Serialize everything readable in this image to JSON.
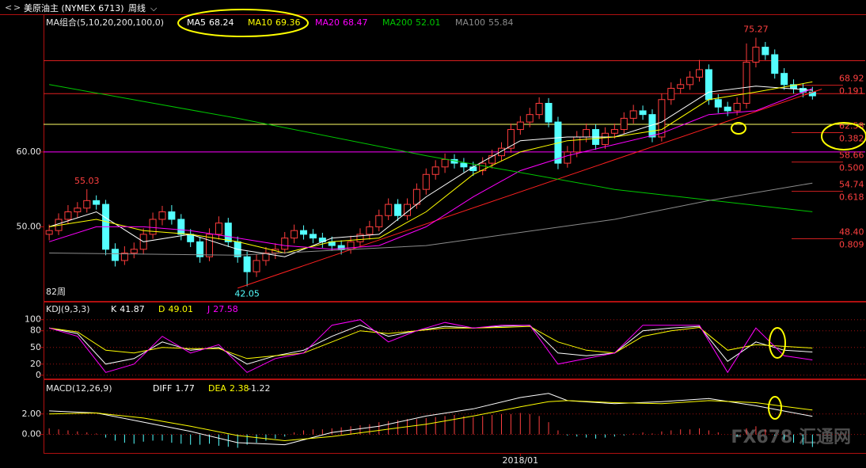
{
  "header": {
    "title": "美原油主 (NYMEX 6713)",
    "period": "周线"
  },
  "watermark": "FX678 汇通网",
  "chart_data": [
    {
      "type": "candlestick",
      "legend_title": "MA组合(5,10,20,200,100,0)",
      "period_label": "82周",
      "up_color": "#ff3c3c",
      "down_color": "#54ffff",
      "xlim": [
        -0.6,
        86.6
      ],
      "ylim": [
        40.1,
        78.4
      ],
      "yticks": [
        {
          "value": 60,
          "label": "60.00"
        },
        {
          "value": 50,
          "label": "50.00"
        }
      ],
      "xticks": [
        {
          "value": 50,
          "label": "2018/01"
        }
      ],
      "grid": false,
      "ohlc": [
        [
          49,
          50.3,
          48.2,
          49.5
        ],
        [
          49.5,
          51.8,
          48.9,
          51
        ],
        [
          51,
          52.9,
          50.4,
          52
        ],
        [
          52,
          53.3,
          51.2,
          52.5
        ],
        [
          52.5,
          55.03,
          51.9,
          53.5
        ],
        [
          53.5,
          54.2,
          52.3,
          53
        ],
        [
          53,
          53.6,
          46.2,
          47
        ],
        [
          47,
          47.8,
          44.7,
          45.5
        ],
        [
          45.5,
          47.4,
          44.9,
          46.5
        ],
        [
          46.5,
          47.9,
          45.8,
          47
        ],
        [
          47,
          49.8,
          46.3,
          49
        ],
        [
          49,
          51.9,
          48.4,
          51
        ],
        [
          51,
          52.8,
          50.2,
          52
        ],
        [
          52,
          52.9,
          50.3,
          51
        ],
        [
          51,
          51.7,
          48.2,
          49
        ],
        [
          49,
          49.7,
          47.3,
          48
        ],
        [
          48,
          48.6,
          45.2,
          46
        ],
        [
          46,
          49.8,
          45.4,
          49
        ],
        [
          49,
          51.4,
          48.3,
          50.5
        ],
        [
          50.5,
          51.2,
          47.3,
          48
        ],
        [
          48,
          48.7,
          45.2,
          46
        ],
        [
          46,
          46.7,
          42.05,
          44
        ],
        [
          44,
          46.3,
          43.3,
          45.5
        ],
        [
          45.5,
          47.3,
          44.8,
          46.5
        ],
        [
          46.5,
          47.8,
          45.7,
          47
        ],
        [
          47,
          49.3,
          46.4,
          48.5
        ],
        [
          48.5,
          50.3,
          47.8,
          49.5
        ],
        [
          49.5,
          50.2,
          48.3,
          49
        ],
        [
          49,
          49.7,
          47.8,
          48.5
        ],
        [
          48.5,
          49.2,
          47.2,
          48
        ],
        [
          48,
          48.7,
          46.8,
          47.5
        ],
        [
          47.5,
          48.2,
          46.3,
          47
        ],
        [
          47,
          48.8,
          46.4,
          48
        ],
        [
          48,
          49.8,
          47.3,
          49
        ],
        [
          49,
          50.8,
          48.3,
          50
        ],
        [
          50,
          52.3,
          49.4,
          51.5
        ],
        [
          51.5,
          53.8,
          50.9,
          53
        ],
        [
          53,
          53.7,
          50.8,
          51.5
        ],
        [
          51.5,
          53.8,
          50.9,
          53
        ],
        [
          53,
          55.8,
          52.4,
          55
        ],
        [
          55,
          57.8,
          54.3,
          57
        ],
        [
          57,
          58.9,
          56.3,
          58
        ],
        [
          58,
          59.8,
          57.2,
          59
        ],
        [
          59,
          59.7,
          57.8,
          58.5
        ],
        [
          58.5,
          59.2,
          57.3,
          58
        ],
        [
          58,
          58.7,
          56.8,
          57.5
        ],
        [
          57.5,
          59.3,
          56.9,
          58.5
        ],
        [
          58.5,
          60.3,
          57.8,
          59.5
        ],
        [
          59.5,
          61.3,
          58.8,
          60.5
        ],
        [
          60.5,
          63.8,
          59.9,
          63
        ],
        [
          63,
          64.8,
          62.3,
          64
        ],
        [
          64,
          65.9,
          63.3,
          65
        ],
        [
          65,
          67.3,
          64.4,
          66.5
        ],
        [
          66.5,
          67.2,
          63.3,
          64
        ],
        [
          64,
          64.7,
          57.7,
          58.5
        ],
        [
          58.5,
          60.8,
          57.9,
          60
        ],
        [
          60,
          62.8,
          59.3,
          62
        ],
        [
          62,
          63.8,
          61.3,
          63
        ],
        [
          63,
          63.7,
          60.3,
          61
        ],
        [
          61,
          63.3,
          60.4,
          62.5
        ],
        [
          62.5,
          63.8,
          61.8,
          63
        ],
        [
          63,
          65.3,
          62.4,
          64.5
        ],
        [
          64.5,
          66.3,
          63.8,
          65.5
        ],
        [
          65.5,
          66.2,
          64.3,
          65
        ],
        [
          65,
          65.7,
          61.3,
          62
        ],
        [
          62,
          67.8,
          61.4,
          67
        ],
        [
          67,
          69.3,
          66.3,
          68.5
        ],
        [
          68.5,
          69.8,
          67.8,
          69
        ],
        [
          69,
          70.8,
          68.3,
          70
        ],
        [
          70,
          72.3,
          69.4,
          71
        ],
        [
          71,
          71.7,
          66.3,
          67
        ],
        [
          67,
          67.7,
          65.2,
          66
        ],
        [
          66,
          66.7,
          64.8,
          65.5
        ],
        [
          65.5,
          67.3,
          64.9,
          66.5
        ],
        [
          66.5,
          74.5,
          65.8,
          72
        ],
        [
          72,
          75.27,
          71.3,
          74
        ],
        [
          74,
          74.7,
          72.3,
          73
        ],
        [
          73,
          73.7,
          69.8,
          70.5
        ],
        [
          70.5,
          71.2,
          68.3,
          69
        ],
        [
          69,
          69.7,
          67.8,
          68.5
        ],
        [
          68.5,
          69.2,
          67.3,
          68
        ],
        [
          68,
          68.7,
          67,
          67.5
        ]
      ],
      "series": [
        {
          "name": "MA5",
          "color": "#ffffff",
          "x": [
            0,
            5,
            10,
            15,
            20,
            25,
            30,
            35,
            40,
            45,
            50,
            55,
            60,
            65,
            70,
            75,
            81
          ],
          "values": [
            50,
            52,
            48,
            49,
            47,
            46,
            48.5,
            49,
            54,
            58,
            61.5,
            62,
            62,
            64,
            68,
            68.8,
            68.24
          ]
        },
        {
          "name": "MA10",
          "color": "#ffff00",
          "x": [
            0,
            5,
            10,
            15,
            20,
            25,
            30,
            35,
            40,
            45,
            50,
            55,
            60,
            65,
            70,
            75,
            81
          ],
          "values": [
            50,
            51,
            49.5,
            49,
            48,
            46.5,
            48,
            48.5,
            52,
            57,
            60,
            61.5,
            62,
            63,
            67,
            68,
            69.36
          ]
        },
        {
          "name": "MA20",
          "color": "#ff00ff",
          "x": [
            0,
            5,
            10,
            15,
            20,
            25,
            30,
            35,
            40,
            45,
            50,
            55,
            60,
            65,
            70,
            75,
            81
          ],
          "values": [
            48,
            50,
            50,
            49.5,
            48.5,
            47.5,
            47,
            47.5,
            50,
            54,
            57.5,
            59.5,
            61,
            62.5,
            65,
            65.5,
            68.47
          ]
        },
        {
          "name": "MA200",
          "color": "#00c800",
          "x": [
            0,
            20,
            40,
            60,
            81
          ],
          "values": [
            69,
            64.5,
            59.5,
            55,
            52.01
          ]
        },
        {
          "name": "MA100",
          "color": "#8c8c8c",
          "x": [
            0,
            20,
            40,
            60,
            70,
            81
          ],
          "values": [
            46.5,
            46.2,
            47.5,
            51,
            53.5,
            55.84
          ]
        }
      ],
      "trendline": {
        "color": "#ff2020",
        "x": [
          20,
          82
        ],
        "values": [
          41.8,
          68.4
        ]
      },
      "hlines": [
        {
          "value": 72.2,
          "color": "#e02020"
        },
        {
          "value": 67.8,
          "color": "#e02020"
        },
        {
          "value": 63.7,
          "color": "#ffff66"
        },
        {
          "value": 60,
          "color": "#ff00ff"
        }
      ],
      "fib": [
        {
          "value": 68.92,
          "label": "68.92",
          "ratio": "0.191"
        },
        {
          "value": 62.58,
          "label": "62.58",
          "ratio": "0.382"
        },
        {
          "value": 58.66,
          "label": "58.66",
          "ratio": "0.500"
        },
        {
          "value": 54.74,
          "label": "54.74",
          "ratio": "0.618"
        },
        {
          "value": 48.4,
          "label": "48.40",
          "ratio": "0.809"
        }
      ],
      "annotations": [
        {
          "x": 4,
          "value": 55.03,
          "color": "#ff4040"
        },
        {
          "x": 75,
          "value": 75.27,
          "color": "#ff4040"
        },
        {
          "x": 21,
          "value": 42.05,
          "color": "#54ffff"
        }
      ]
    },
    {
      "type": "line",
      "legend_title": "KDJ(9,3,3)",
      "xlim": [
        -0.6,
        86.6
      ],
      "ylim": [
        -6,
        131
      ],
      "yticks": [
        100,
        80,
        50,
        20,
        0
      ],
      "grid": true,
      "series": [
        {
          "name": "K",
          "color": "#ffffff",
          "x": [
            0,
            3,
            6,
            9,
            12,
            15,
            18,
            21,
            24,
            27,
            30,
            33,
            36,
            39,
            42,
            45,
            48,
            51,
            54,
            57,
            60,
            63,
            66,
            69,
            72,
            75,
            78,
            81
          ],
          "values": [
            85,
            75,
            20,
            30,
            60,
            45,
            50,
            20,
            35,
            45,
            70,
            90,
            70,
            80,
            88,
            85,
            88,
            90,
            40,
            35,
            40,
            80,
            85,
            88,
            25,
            60,
            45,
            41.87
          ]
        },
        {
          "name": "D",
          "color": "#ffff00",
          "x": [
            0,
            3,
            6,
            9,
            12,
            15,
            18,
            21,
            24,
            27,
            30,
            33,
            36,
            39,
            42,
            45,
            48,
            51,
            54,
            57,
            60,
            63,
            66,
            69,
            72,
            75,
            78,
            81
          ],
          "values": [
            85,
            78,
            45,
            40,
            50,
            48,
            48,
            30,
            35,
            40,
            60,
            80,
            75,
            80,
            85,
            85,
            86,
            88,
            60,
            45,
            40,
            70,
            80,
            86,
            45,
            55,
            52,
            49.01
          ]
        },
        {
          "name": "J",
          "color": "#ff00ff",
          "x": [
            0,
            3,
            6,
            9,
            12,
            15,
            18,
            21,
            24,
            27,
            30,
            33,
            36,
            39,
            42,
            45,
            48,
            51,
            54,
            57,
            60,
            63,
            66,
            69,
            72,
            75,
            78,
            81
          ],
          "values": [
            85,
            70,
            5,
            20,
            70,
            40,
            55,
            5,
            30,
            40,
            90,
            100,
            60,
            80,
            95,
            85,
            90,
            90,
            20,
            30,
            40,
            90,
            90,
            90,
            5,
            85,
            35,
            27.58
          ]
        }
      ]
    },
    {
      "type": "macd",
      "legend_title": "MACD(12,26,9)",
      "xlim": [
        -0.6,
        86.6
      ],
      "ylim": [
        -1.8,
        5.3
      ],
      "yticks": [
        {
          "value": 2,
          "label": "2.00"
        },
        {
          "value": 0,
          "label": "0.00"
        }
      ],
      "grid": true,
      "series": [
        {
          "name": "DIFF",
          "color": "#ffffff",
          "x": [
            0,
            5,
            10,
            15,
            20,
            25,
            30,
            35,
            40,
            45,
            50,
            53,
            55,
            60,
            65,
            70,
            75,
            81
          ],
          "values": [
            2.3,
            2.1,
            1.2,
            0.3,
            -0.8,
            -1.0,
            0.2,
            0.8,
            1.8,
            2.5,
            3.6,
            4.0,
            3.3,
            3.0,
            3.2,
            3.5,
            2.8,
            1.77
          ]
        },
        {
          "name": "DEA",
          "color": "#ffff00",
          "x": [
            0,
            5,
            10,
            15,
            20,
            25,
            30,
            35,
            40,
            45,
            50,
            53,
            55,
            60,
            65,
            70,
            75,
            81
          ],
          "values": [
            2.0,
            2.1,
            1.6,
            0.8,
            -0.1,
            -0.6,
            -0.2,
            0.4,
            1.0,
            1.8,
            2.7,
            3.2,
            3.3,
            3.1,
            3.0,
            3.3,
            3.1,
            2.38
          ]
        }
      ],
      "hist_colors": {
        "up": "#ff4040",
        "down": "#54ffff"
      },
      "hist": [
        0.6,
        0.5,
        0.4,
        0.3,
        0.2,
        0.1,
        -0.3,
        -0.6,
        -0.8,
        -0.9,
        -0.7,
        -0.6,
        -0.6,
        -0.8,
        -0.9,
        -1.0,
        -1.0,
        -0.9,
        -1.1,
        -1.2,
        -1.3,
        -1.0,
        -0.8,
        -0.6,
        -0.4,
        -0.2,
        0.2,
        0.4,
        0.5,
        0.5,
        0.6,
        0.7,
        0.8,
        0.9,
        1.0,
        1.2,
        1.3,
        1.4,
        1.5,
        1.5,
        1.6,
        1.7,
        1.8,
        1.9,
        1.8,
        1.7,
        1.8,
        1.9,
        2.0,
        2.0,
        2.1,
        2.0,
        1.8,
        1.2,
        0.4,
        -0.1,
        -0.2,
        -0.3,
        -0.4,
        -0.3,
        -0.2,
        -0.1,
        0.1,
        0.2,
        0.1,
        0.3,
        0.4,
        0.5,
        0.5,
        0.6,
        0.4,
        0.2,
        0.0,
        -0.2,
        0.6,
        0.8,
        0.5,
        -0.1,
        -0.5,
        -0.8,
        -1.0,
        -1.22
      ]
    }
  ]
}
